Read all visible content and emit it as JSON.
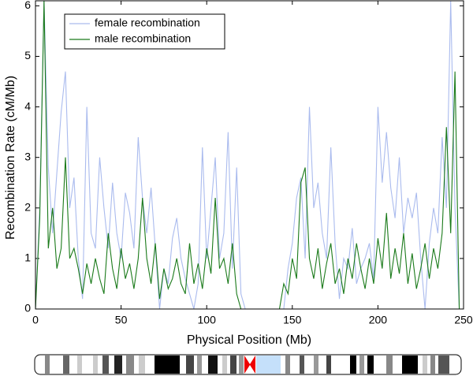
{
  "chart_data": {
    "type": "line",
    "xlabel": "Physical Position (Mb)",
    "ylabel": "Recombination Rate (cM/Mb)",
    "x": [
      0,
      2.5,
      5,
      7.5,
      10,
      12.5,
      15,
      17.5,
      20,
      22.5,
      25,
      27.5,
      30,
      32.5,
      35,
      37.5,
      40,
      42.5,
      45,
      47.5,
      50,
      52.5,
      55,
      57.5,
      60,
      62.5,
      65,
      67.5,
      70,
      72.5,
      75,
      77.5,
      80,
      82.5,
      85,
      87.5,
      90,
      92.5,
      95,
      97.5,
      100,
      102.5,
      105,
      107.5,
      110,
      112.5,
      115,
      117.5,
      120,
      122.5,
      125,
      127.5,
      130,
      132.5,
      135,
      137.5,
      140,
      142.5,
      145,
      147.5,
      150,
      152.5,
      155,
      157.5,
      160,
      162.5,
      165,
      167.5,
      170,
      172.5,
      175,
      177.5,
      180,
      182.5,
      185,
      187.5,
      190,
      192.5,
      195,
      197.5,
      200,
      202.5,
      205,
      207.5,
      210,
      212.5,
      215,
      217.5,
      220,
      222.5,
      225,
      227.5,
      230,
      232.5,
      235,
      237.5,
      240,
      242.5,
      245,
      247.5
    ],
    "series": [
      {
        "name": "female recombination",
        "color": "#aabbee",
        "values": [
          0,
          2.0,
          6.1,
          2.8,
          1.5,
          2.7,
          3.9,
          4.7,
          2.0,
          2.6,
          1.0,
          0.2,
          4.0,
          1.5,
          1.2,
          3.0,
          2.0,
          1.2,
          2.5,
          1.5,
          1.0,
          2.3,
          1.9,
          1.2,
          3.4,
          2.2,
          1.5,
          2.4,
          1.2,
          0,
          0.8,
          0.5,
          1.4,
          1.8,
          1.0,
          0.6,
          0.3,
          0,
          0.5,
          3.2,
          1.0,
          2.0,
          3.0,
          1.0,
          1.5,
          3.5,
          0.8,
          2.8,
          0.3,
          0,
          0,
          0,
          0,
          0,
          0,
          0,
          0,
          0,
          0,
          0.8,
          1.3,
          2.2,
          2.6,
          1.0,
          4.0,
          2.0,
          2.5,
          1.5,
          1.0,
          3.2,
          1.3,
          0.2,
          1.0,
          0.8,
          1.6,
          0.5,
          0.8,
          1.0,
          1.3,
          0.6,
          4.0,
          2.5,
          3.5,
          2.4,
          1.8,
          3.0,
          1.5,
          2.2,
          1.8,
          2.3,
          1.0,
          0,
          1.3,
          2.0,
          1.5,
          3.4,
          2.0,
          6.1,
          2.0,
          0
        ]
      },
      {
        "name": "male recombination",
        "color": "#1a7a1a",
        "values": [
          0,
          1.8,
          6.1,
          1.2,
          2.0,
          0.8,
          1.2,
          3.0,
          1.0,
          1.2,
          0.8,
          0.3,
          0.9,
          0.5,
          1.0,
          0.6,
          0.3,
          1.5,
          0.8,
          0.4,
          1.2,
          0.6,
          0.9,
          0.4,
          1.0,
          2.2,
          1.0,
          0.5,
          1.3,
          0.2,
          0.8,
          0.4,
          0.6,
          1.0,
          0.5,
          0.3,
          1.3,
          0.5,
          0.9,
          0.4,
          1.2,
          0.7,
          2.2,
          0.8,
          1.0,
          0.5,
          1.3,
          0.3,
          0,
          0,
          0,
          0,
          0,
          0,
          0,
          0,
          0,
          0,
          0.5,
          0.3,
          1.0,
          0.6,
          2.5,
          2.8,
          1.0,
          0.6,
          1.2,
          0.4,
          0.9,
          1.3,
          0.5,
          0.8,
          0.3,
          1.0,
          0.6,
          1.3,
          0.8,
          0.4,
          1.0,
          0.5,
          1.4,
          0.8,
          1.9,
          0.6,
          1.2,
          0.7,
          1.5,
          0.5,
          1.1,
          0.4,
          0.8,
          1.3,
          0.6,
          1.2,
          0.8,
          1.5,
          3.6,
          1.5,
          4.7,
          0
        ]
      }
    ],
    "xlim": [
      0,
      250
    ],
    "xticks": [
      0,
      50,
      100,
      150,
      200,
      250
    ],
    "ylim": [
      0,
      6.1
    ],
    "yticks": [
      0,
      1,
      2,
      3,
      4,
      5,
      6
    ],
    "legend": "upper left"
  }
}
